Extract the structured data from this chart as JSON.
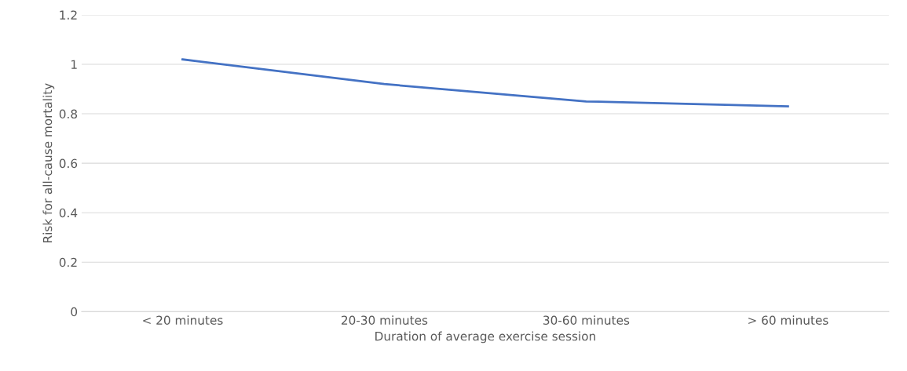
{
  "chart_data": {
    "type": "line",
    "xlabel": "Duration of average exercise session",
    "ylabel": "Risk for all-cause mortality",
    "categories": [
      "< 20 minutes",
      "20-30 minutes",
      "30-60 minutes",
      "> 60 minutes"
    ],
    "series": [
      {
        "color": "#4472c4",
        "values": [
          1.02,
          0.92,
          0.85,
          0.83
        ]
      }
    ],
    "ylim": [
      0,
      1.2
    ],
    "yticks": [
      0,
      0.2,
      0.4,
      0.6,
      0.8,
      1,
      1.2
    ],
    "grid": "y",
    "legend": false,
    "marker": "none",
    "line_style": "solid"
  }
}
